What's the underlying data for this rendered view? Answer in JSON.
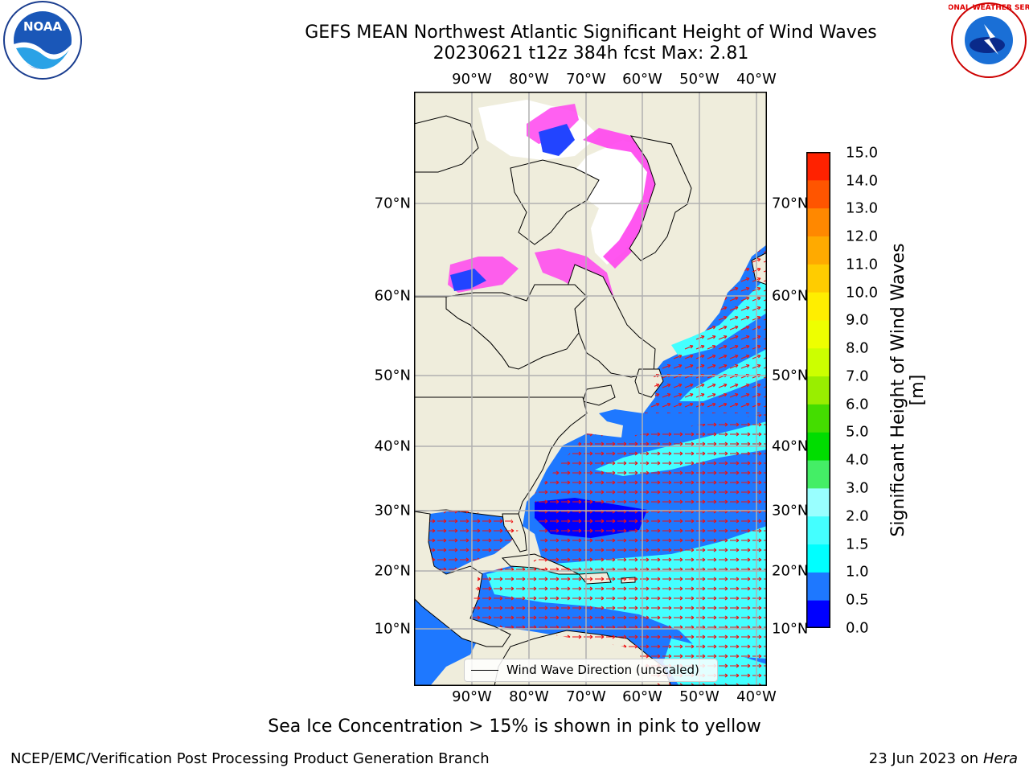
{
  "title_line1": "GEFS MEAN Northwest Atlantic Significant Height of Wind Waves",
  "title_line2": "20230621 t12z 384h fcst   Max: 2.81",
  "lon_labels": [
    "90°W",
    "80°W",
    "70°W",
    "60°W",
    "50°W",
    "40°W"
  ],
  "lat_labels": [
    "70°N",
    "60°N",
    "50°N",
    "40°N",
    "30°N",
    "20°N",
    "10°N"
  ],
  "legend_label": "Wind Wave Direction (unscaled)",
  "colorbar": {
    "label": "Significant Height of Wind Waves [m]",
    "ticks": [
      "15.0",
      "14.0",
      "13.0",
      "12.0",
      "11.0",
      "10.0",
      "9.0",
      "8.0",
      "7.0",
      "6.0",
      "5.0",
      "4.0",
      "3.0",
      "2.0",
      "1.5",
      "1.0",
      "0.5",
      "0.0"
    ],
    "colors_bottom_to_top": [
      "#0000ff",
      "#1e78ff",
      "#00ffff",
      "#44ffff",
      "#99ffff",
      "#44ee66",
      "#00dd00",
      "#44dd00",
      "#99ee00",
      "#ccff00",
      "#eeff00",
      "#ffee00",
      "#ffcc00",
      "#ffaa00",
      "#ff8800",
      "#ff5500",
      "#ff2200"
    ]
  },
  "caption": "Sea Ice Concentration > 15% is shown in pink to yellow",
  "footer_left": "NCEP/EMC/Verification Post Processing Product Generation Branch",
  "footer_date": "23 Jun 2023 on",
  "footer_machine": "Hera",
  "logo_noaa_text": "NOAA",
  "logo_nws_text": "NATIONAL WEATHER SERVICE",
  "colors": {
    "land": "#efeddc",
    "ocean_low": "#1e78ff",
    "ocean_high": "#44ffff",
    "arrow": "#ee1111",
    "ice": "#ff44ee"
  }
}
